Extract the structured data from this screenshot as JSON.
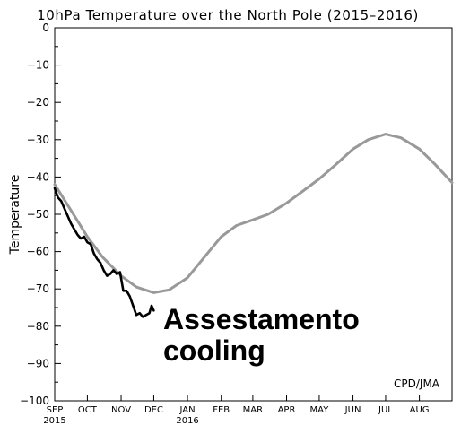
{
  "chart_data": {
    "type": "line",
    "title": "10hPa Temperature over the North Pole (2015–2016)",
    "ylabel": "Temperature",
    "xlabel": "",
    "ylim": [
      -100,
      0
    ],
    "yticks": [
      0,
      -10,
      -20,
      -30,
      -40,
      -50,
      -60,
      -70,
      -80,
      -90,
      -100
    ],
    "xlim": [
      "2015-09-01",
      "2016-08-31"
    ],
    "xticks": [
      {
        "date": "2015-09-01",
        "label": "SEP",
        "sub": "2015"
      },
      {
        "date": "2015-10-01",
        "label": "OCT",
        "sub": ""
      },
      {
        "date": "2015-11-01",
        "label": "NOV",
        "sub": ""
      },
      {
        "date": "2015-12-01",
        "label": "DEC",
        "sub": ""
      },
      {
        "date": "2016-01-01",
        "label": "JAN",
        "sub": "2016"
      },
      {
        "date": "2016-02-01",
        "label": "FEB",
        "sub": ""
      },
      {
        "date": "2016-03-01",
        "label": "MAR",
        "sub": ""
      },
      {
        "date": "2016-04-01",
        "label": "APR",
        "sub": ""
      },
      {
        "date": "2016-05-01",
        "label": "MAY",
        "sub": ""
      },
      {
        "date": "2016-06-01",
        "label": "JUN",
        "sub": ""
      },
      {
        "date": "2016-07-01",
        "label": "JUL",
        "sub": ""
      },
      {
        "date": "2016-08-01",
        "label": "AUG",
        "sub": ""
      }
    ],
    "series": [
      {
        "color": "#999999",
        "points": [
          [
            "2015-09-01",
            -42
          ],
          [
            "2015-09-15",
            -48.5
          ],
          [
            "2015-10-01",
            -56
          ],
          [
            "2015-10-15",
            -61.5
          ],
          [
            "2015-11-01",
            -66.5
          ],
          [
            "2015-11-15",
            -69.5
          ],
          [
            "2015-12-01",
            -71
          ],
          [
            "2015-12-15",
            -70.3
          ],
          [
            "2016-01-01",
            -67
          ],
          [
            "2016-01-15",
            -62
          ],
          [
            "2016-02-01",
            -56
          ],
          [
            "2016-02-15",
            -53
          ],
          [
            "2016-03-01",
            -51.5
          ],
          [
            "2016-03-15",
            -50
          ],
          [
            "2016-04-01",
            -47
          ],
          [
            "2016-04-15",
            -44
          ],
          [
            "2016-05-01",
            -40.5
          ],
          [
            "2016-05-15",
            -37
          ],
          [
            "2016-06-01",
            -32.5
          ],
          [
            "2016-06-15",
            -30
          ],
          [
            "2016-07-01",
            -28.5
          ],
          [
            "2016-07-15",
            -29.5
          ],
          [
            "2016-08-01",
            -32.5
          ],
          [
            "2016-08-15",
            -36.5
          ],
          [
            "2016-08-31",
            -41.5
          ]
        ]
      },
      {
        "color": "#000000",
        "points": [
          [
            "2015-09-01",
            -43
          ],
          [
            "2015-09-04",
            -45.5
          ],
          [
            "2015-09-07",
            -46.5
          ],
          [
            "2015-09-10",
            -48.5
          ],
          [
            "2015-09-13",
            -50.5
          ],
          [
            "2015-09-16",
            -52.5
          ],
          [
            "2015-09-19",
            -54
          ],
          [
            "2015-09-22",
            -55.5
          ],
          [
            "2015-09-25",
            -56.5
          ],
          [
            "2015-09-28",
            -56
          ],
          [
            "2015-10-01",
            -57.5
          ],
          [
            "2015-10-04",
            -58
          ],
          [
            "2015-10-07",
            -60.5
          ],
          [
            "2015-10-10",
            -62
          ],
          [
            "2015-10-13",
            -63
          ],
          [
            "2015-10-16",
            -65
          ],
          [
            "2015-10-19",
            -66.5
          ],
          [
            "2015-10-22",
            -66
          ],
          [
            "2015-10-25",
            -65
          ],
          [
            "2015-10-28",
            -66
          ],
          [
            "2015-10-31",
            -65.5
          ],
          [
            "2015-11-03",
            -70.5
          ],
          [
            "2015-11-06",
            -70.5
          ],
          [
            "2015-11-09",
            -72
          ],
          [
            "2015-11-12",
            -74.5
          ],
          [
            "2015-11-15",
            -77
          ],
          [
            "2015-11-18",
            -76.5
          ],
          [
            "2015-11-21",
            -77.5
          ],
          [
            "2015-11-24",
            -77
          ],
          [
            "2015-11-27",
            -76.5
          ],
          [
            "2015-11-29",
            -74.5
          ],
          [
            "2015-12-01",
            -75.8
          ]
        ]
      }
    ],
    "annotations": [
      "Assestamento",
      "cooling"
    ],
    "credit": "CPD/JMA",
    "grid": false
  }
}
